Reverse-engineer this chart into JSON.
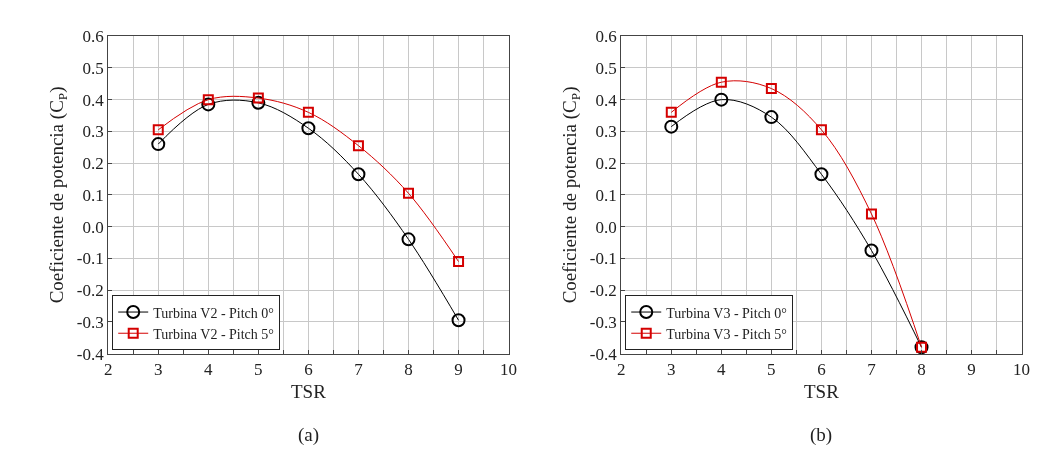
{
  "chart_data": [
    {
      "type": "line",
      "xlabel": "TSR",
      "ylabel": "Coeficiente de potencia (C$_{P}$)",
      "annotations": [
        "(a)"
      ],
      "x": [
        3,
        4,
        5,
        6,
        7,
        8,
        9
      ],
      "series": [
        {
          "name": "Turbina V2 - Pitch 0°",
          "color": "#000000",
          "marker": "circle",
          "values": [
            0.26,
            0.385,
            0.39,
            0.31,
            0.165,
            -0.04,
            -0.295
          ]
        },
        {
          "name": "Turbina V2 - Pitch 5°",
          "color": "#d40000",
          "marker": "square",
          "values": [
            0.305,
            0.4,
            0.405,
            0.36,
            0.255,
            0.105,
            -0.11
          ]
        }
      ],
      "xlim": [
        2,
        10
      ],
      "xticks": [
        2,
        {
          "value": 2.5,
          "label": null
        },
        3,
        {
          "value": 3.5,
          "label": null
        },
        4,
        {
          "value": 4.5,
          "label": null
        },
        5,
        {
          "value": 5.5,
          "label": null
        },
        6,
        {
          "value": 6.5,
          "label": null
        },
        7,
        {
          "value": 7.5,
          "label": null
        },
        8,
        {
          "value": 8.5,
          "label": null
        },
        9,
        {
          "value": 9.5,
          "label": null
        },
        10
      ],
      "ylim": [
        -0.4,
        0.6
      ],
      "yticks": [
        -0.4,
        -0.3,
        -0.2,
        -0.1,
        {
          "value": 0,
          "label": "0.0"
        },
        0.1,
        0.2,
        0.3,
        0.4,
        0.5,
        0.6
      ],
      "grid": true,
      "legend": "bottom left"
    },
    {
      "type": "line",
      "xlabel": "TSR",
      "ylabel": "Coeficiente de potencia (C$_{P}$)",
      "annotations": [
        "(b)"
      ],
      "x": [
        3,
        4,
        5,
        6,
        7,
        8
      ],
      "series": [
        {
          "name": "Turbina V3 - Pitch 0°",
          "color": "#000000",
          "marker": "circle",
          "values": [
            0.315,
            0.4,
            0.345,
            0.165,
            -0.075,
            -0.38
          ]
        },
        {
          "name": "Turbina V3 - Pitch 5°",
          "color": "#d40000",
          "marker": "square",
          "values": [
            0.36,
            0.455,
            0.435,
            0.305,
            0.04,
            -0.38
          ]
        }
      ],
      "xlim": [
        2,
        10
      ],
      "xticks": [
        2,
        {
          "value": 2.5,
          "label": null
        },
        3,
        {
          "value": 3.5,
          "label": null
        },
        4,
        {
          "value": 4.5,
          "label": null
        },
        5,
        {
          "value": 5.5,
          "label": null
        },
        6,
        {
          "value": 6.5,
          "label": null
        },
        7,
        {
          "value": 7.5,
          "label": null
        },
        8,
        {
          "value": 8.5,
          "label": null
        },
        9,
        {
          "value": 9.5,
          "label": null
        },
        10
      ],
      "ylim": [
        -0.4,
        0.6
      ],
      "yticks": [
        -0.4,
        -0.3,
        -0.2,
        -0.1,
        {
          "value": 0,
          "label": "0.0"
        },
        0.1,
        0.2,
        0.3,
        0.4,
        0.5,
        0.6
      ],
      "grid": true,
      "legend": "bottom left"
    }
  ]
}
